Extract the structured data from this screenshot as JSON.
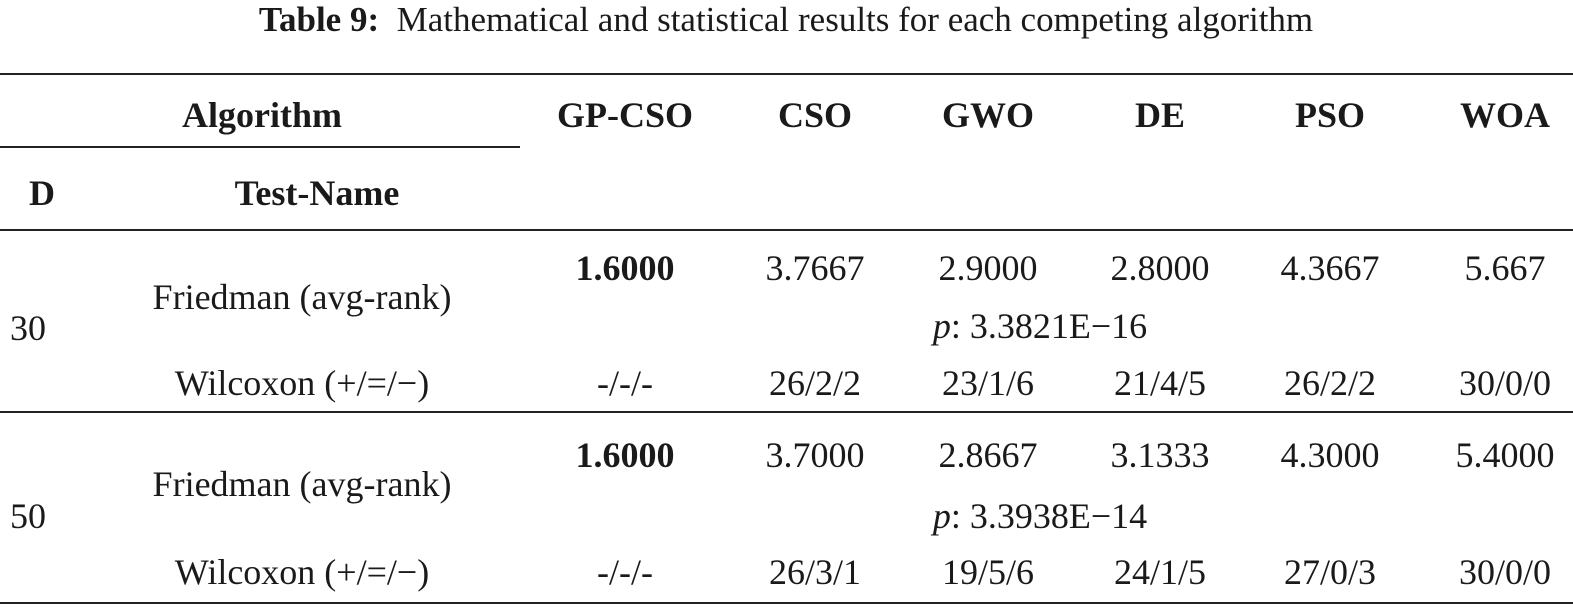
{
  "title": {
    "label": "Table 9:",
    "text": "Mathematical and statistical results for each competing algorithm"
  },
  "header": {
    "algorithm": "Algorithm",
    "columns": [
      "GP-CSO",
      "CSO",
      "GWO",
      "DE",
      "PSO",
      "WOA"
    ],
    "d": "D",
    "test_name": "Test-Name"
  },
  "groups": [
    {
      "d": "30",
      "friedman": {
        "label": "Friedman (avg-rank)",
        "values": [
          "1.6000",
          "3.7667",
          "2.9000",
          "2.8000",
          "4.3667",
          "5.667"
        ],
        "p": {
          "symbol": "p",
          "text": ": 3.3821E−16"
        }
      },
      "wilcoxon": {
        "label": "Wilcoxon (+/=/−)",
        "values": [
          "-/-/-",
          "26/2/2",
          "23/1/6",
          "21/4/5",
          "26/2/2",
          "30/0/0"
        ]
      }
    },
    {
      "d": "50",
      "friedman": {
        "label": "Friedman (avg-rank)",
        "values": [
          "1.6000",
          "3.7000",
          "2.8667",
          "3.1333",
          "4.3000",
          "5.4000"
        ],
        "p": {
          "symbol": "p",
          "text": ": 3.3938E−14"
        }
      },
      "wilcoxon": {
        "label": "Wilcoxon (+/=/−)",
        "values": [
          "-/-/-",
          "26/3/1",
          "19/5/6",
          "24/1/5",
          "27/0/3",
          "30/0/0"
        ]
      }
    }
  ]
}
